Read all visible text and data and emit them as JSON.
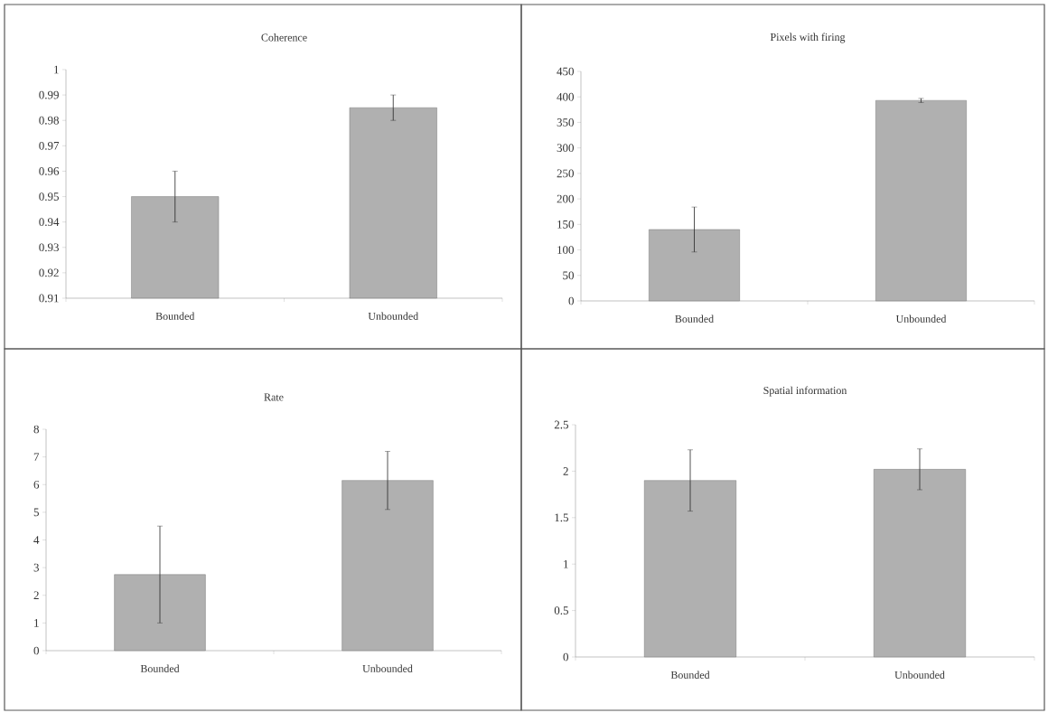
{
  "chart_data": [
    {
      "type": "bar",
      "title": "Coherence",
      "categories": [
        "Bounded",
        "Unbounded"
      ],
      "values": [
        0.95,
        0.985
      ],
      "errors": [
        0.01,
        0.005
      ],
      "color": "#b0b0b0",
      "ylim": [
        0.91,
        1
      ],
      "yticks": [
        0.91,
        0.92,
        0.93,
        0.94,
        0.95,
        0.96,
        0.97,
        0.98,
        0.99,
        1
      ]
    },
    {
      "type": "bar",
      "title": "Pixels with firing",
      "categories": [
        "Bounded",
        "Unbounded"
      ],
      "values": [
        140,
        393
      ],
      "errors": [
        44,
        4
      ],
      "color": "#b0b0b0",
      "ylim": [
        0,
        450
      ],
      "yticks": [
        0,
        50,
        100,
        150,
        200,
        250,
        300,
        350,
        400,
        450
      ]
    },
    {
      "type": "bar",
      "title": "Rate",
      "categories": [
        "Bounded",
        "Unbounded"
      ],
      "values": [
        2.75,
        6.15
      ],
      "errors": [
        1.75,
        1.05
      ],
      "color": "#b0b0b0",
      "ylim": [
        0,
        8
      ],
      "yticks": [
        0,
        1,
        2,
        3,
        4,
        5,
        6,
        7,
        8
      ]
    },
    {
      "type": "bar",
      "title": "Spatial information",
      "categories": [
        "Bounded",
        "Unbounded"
      ],
      "values": [
        1.9,
        2.02
      ],
      "errors": [
        0.33,
        0.22
      ],
      "color": "#b0b0b0",
      "ylim": [
        0,
        2.5
      ],
      "yticks": [
        0,
        0.5,
        1,
        1.5,
        2,
        2.5
      ]
    }
  ]
}
